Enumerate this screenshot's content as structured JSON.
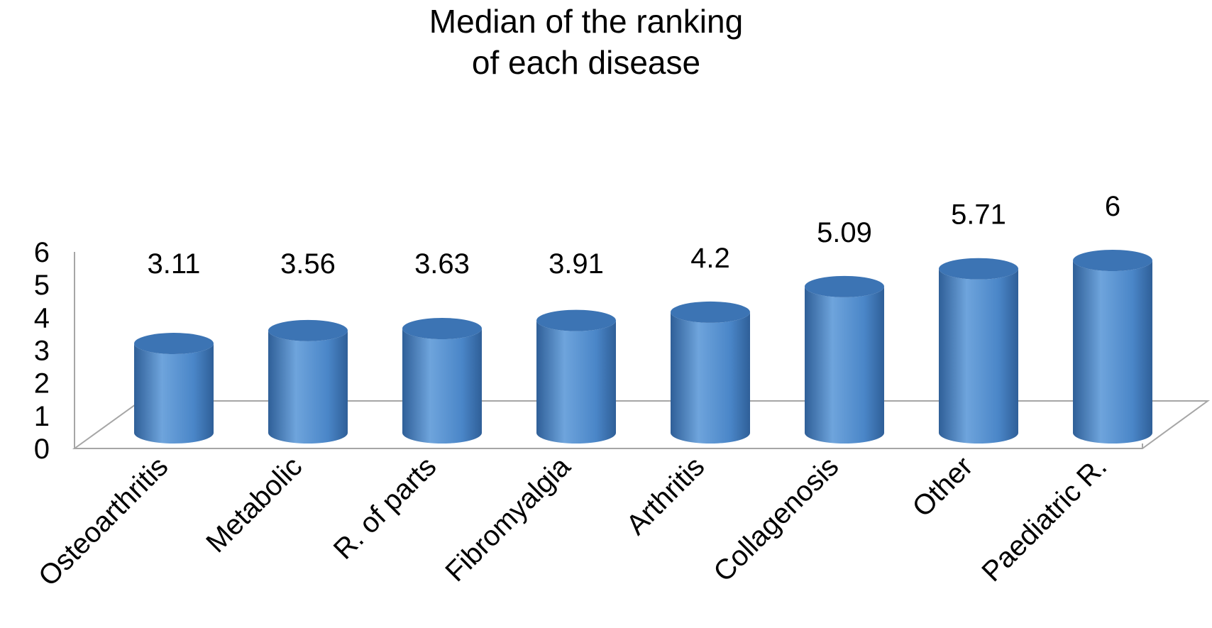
{
  "chart_data": {
    "type": "bar",
    "title_lines": [
      "Median of the ranking",
      "of each disease"
    ],
    "categories": [
      "Osteoarthritis",
      "Metabolic",
      "R. of parts",
      "Fibromyalgia",
      "Arthritis",
      "Collagenosis",
      "Other",
      "Paediatric R."
    ],
    "values": [
      3.11,
      3.56,
      3.63,
      3.91,
      4.2,
      5.09,
      5.71,
      6
    ],
    "data_labels": [
      "3.11",
      "3.56",
      "3.63",
      "3.91",
      "4.2",
      "5.09",
      "5.71",
      "6"
    ],
    "y_ticks": [
      "0",
      "1",
      "2",
      "3",
      "4",
      "5",
      "6"
    ],
    "ylim": [
      0,
      6
    ],
    "bar_style": "3d-cylinder",
    "grid": false,
    "legend": "none",
    "colors": {
      "bar_body": "#4a86c8",
      "bar_dark": "#2f5f98",
      "bar_light": "#6ea4dc",
      "bar_top": "#3c74b4",
      "floor": "#a6a6a6"
    }
  }
}
